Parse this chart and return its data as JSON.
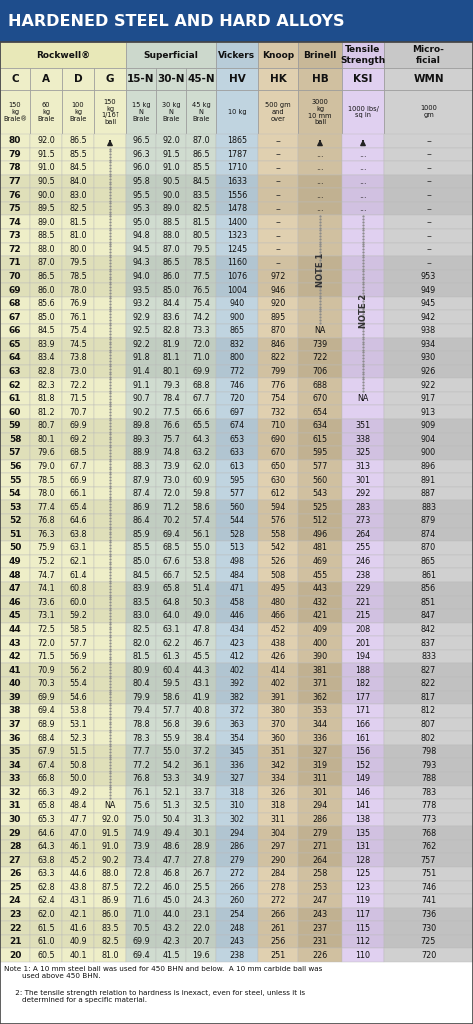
{
  "title": "HARDENED STEEL AND HARD ALLOYS",
  "rows": [
    [
      "80",
      "92.0",
      "86.5",
      "▲",
      "96.5",
      "92.0",
      "87.0",
      "1865",
      "–",
      "▲",
      "▲",
      "–"
    ],
    [
      "79",
      "91.5",
      "85.5",
      "...",
      "96.3",
      "91.5",
      "86.5",
      "1787",
      "–",
      "...",
      "...",
      "–"
    ],
    [
      "78",
      "91.0",
      "84.5",
      "...",
      "96.0",
      "91.0",
      "85.5",
      "1710",
      "–",
      "...",
      "...",
      "–"
    ],
    [
      "77",
      "90.5",
      "84.0",
      "...",
      "95.8",
      "90.5",
      "84.5",
      "1633",
      "–",
      "...",
      "...",
      "–"
    ],
    [
      "76",
      "90.0",
      "83.0",
      "...",
      "95.5",
      "90.0",
      "83.5",
      "1556",
      "–",
      "...",
      "...",
      "–"
    ],
    [
      "75",
      "89.5",
      "82.5",
      "...",
      "95.3",
      "89.0",
      "82.5",
      "1478",
      "–",
      "...",
      "...",
      "–"
    ],
    [
      "74",
      "89.0",
      "81.5",
      "...",
      "95.0",
      "88.5",
      "81.5",
      "1400",
      "–",
      "NOTE1",
      "NOTE2",
      "–"
    ],
    [
      "73",
      "88.5",
      "81.0",
      "...",
      "94.8",
      "88.0",
      "80.5",
      "1323",
      "–",
      "NOTE1",
      "NOTE2",
      "–"
    ],
    [
      "72",
      "88.0",
      "80.0",
      "...",
      "94.5",
      "87.0",
      "79.5",
      "1245",
      "–",
      "NOTE1",
      "NOTE2",
      "–"
    ],
    [
      "71",
      "87.0",
      "79.5",
      "...",
      "94.3",
      "86.5",
      "78.5",
      "1160",
      "–",
      "NOTE1",
      "NOTE2",
      "–"
    ],
    [
      "70",
      "86.5",
      "78.5",
      "...",
      "94.0",
      "86.0",
      "77.5",
      "1076",
      "972",
      "NOTE1",
      "NOTE2",
      "953"
    ],
    [
      "69",
      "86.0",
      "78.0",
      "...",
      "93.5",
      "85.0",
      "76.5",
      "1004",
      "946",
      "NOTE1",
      "NOTE2",
      "949"
    ],
    [
      "68",
      "85.6",
      "76.9",
      "...",
      "93.2",
      "84.4",
      "75.4",
      "940",
      "920",
      "NOTE1",
      "NOTE2",
      "945"
    ],
    [
      "67",
      "85.0",
      "76.1",
      "...",
      "92.9",
      "83.6",
      "74.2",
      "900",
      "895",
      "NOTE1",
      "NOTE2",
      "942"
    ],
    [
      "66",
      "84.5",
      "75.4",
      "...",
      "92.5",
      "82.8",
      "73.3",
      "865",
      "870",
      "NA",
      "NOTE2",
      "938"
    ],
    [
      "65",
      "83.9",
      "74.5",
      "...",
      "92.2",
      "81.9",
      "72.0",
      "832",
      "846",
      "739",
      "NOTE2",
      "934"
    ],
    [
      "64",
      "83.4",
      "73.8",
      "...",
      "91.8",
      "81.1",
      "71.0",
      "800",
      "822",
      "722",
      "NOTE2",
      "930"
    ],
    [
      "63",
      "82.8",
      "73.0",
      "...",
      "91.4",
      "80.1",
      "69.9",
      "772",
      "799",
      "706",
      "NOTE2",
      "926"
    ],
    [
      "62",
      "82.3",
      "72.2",
      "...",
      "91.1",
      "79.3",
      "68.8",
      "746",
      "776",
      "688",
      "NOTE2",
      "922"
    ],
    [
      "61",
      "81.8",
      "71.5",
      "...",
      "90.7",
      "78.4",
      "67.7",
      "720",
      "754",
      "670",
      "NA",
      "917"
    ],
    [
      "60",
      "81.2",
      "70.7",
      "...",
      "90.2",
      "77.5",
      "66.6",
      "697",
      "732",
      "654",
      "",
      "913"
    ],
    [
      "59",
      "80.7",
      "69.9",
      "...",
      "89.8",
      "76.6",
      "65.5",
      "674",
      "710",
      "634",
      "351",
      "909"
    ],
    [
      "58",
      "80.1",
      "69.2",
      "...",
      "89.3",
      "75.7",
      "64.3",
      "653",
      "690",
      "615",
      "338",
      "904"
    ],
    [
      "57",
      "79.6",
      "68.5",
      "...",
      "88.9",
      "74.8",
      "63.2",
      "633",
      "670",
      "595",
      "325",
      "900"
    ],
    [
      "56",
      "79.0",
      "67.7",
      "...",
      "88.3",
      "73.9",
      "62.0",
      "613",
      "650",
      "577",
      "313",
      "896"
    ],
    [
      "55",
      "78.5",
      "66.9",
      "...",
      "87.9",
      "73.0",
      "60.9",
      "595",
      "630",
      "560",
      "301",
      "891"
    ],
    [
      "54",
      "78.0",
      "66.1",
      "...",
      "87.4",
      "72.0",
      "59.8",
      "577",
      "612",
      "543",
      "292",
      "887"
    ],
    [
      "53",
      "77.4",
      "65.4",
      "...",
      "86.9",
      "71.2",
      "58.6",
      "560",
      "594",
      "525",
      "283",
      "883"
    ],
    [
      "52",
      "76.8",
      "64.6",
      "...",
      "86.4",
      "70.2",
      "57.4",
      "544",
      "576",
      "512",
      "273",
      "879"
    ],
    [
      "51",
      "76.3",
      "63.8",
      "...",
      "85.9",
      "69.4",
      "56.1",
      "528",
      "558",
      "496",
      "264",
      "874"
    ],
    [
      "50",
      "75.9",
      "63.1",
      "...",
      "85.5",
      "68.5",
      "55.0",
      "513",
      "542",
      "481",
      "255",
      "870"
    ],
    [
      "49",
      "75.2",
      "62.1",
      "...",
      "85.0",
      "67.6",
      "53.8",
      "498",
      "526",
      "469",
      "246",
      "865"
    ],
    [
      "48",
      "74.7",
      "61.4",
      "...",
      "84.5",
      "66.7",
      "52.5",
      "484",
      "508",
      "455",
      "238",
      "861"
    ],
    [
      "47",
      "74.1",
      "60.8",
      "...",
      "83.9",
      "65.8",
      "51.4",
      "471",
      "495",
      "443",
      "229",
      "856"
    ],
    [
      "46",
      "73.6",
      "60.0",
      "...",
      "83.5",
      "64.8",
      "50.3",
      "458",
      "480",
      "432",
      "221",
      "851"
    ],
    [
      "45",
      "73.1",
      "59.2",
      "...",
      "83.0",
      "64.0",
      "49.0",
      "446",
      "466",
      "421",
      "215",
      "847"
    ],
    [
      "44",
      "72.5",
      "58.5",
      "...",
      "82.5",
      "63.1",
      "47.8",
      "434",
      "452",
      "409",
      "208",
      "842"
    ],
    [
      "43",
      "72.0",
      "57.7",
      "...",
      "82.0",
      "62.2",
      "46.7",
      "423",
      "438",
      "400",
      "201",
      "837"
    ],
    [
      "42",
      "71.5",
      "56.9",
      "...",
      "81.5",
      "61.3",
      "45.5",
      "412",
      "426",
      "390",
      "194",
      "833"
    ],
    [
      "41",
      "70.9",
      "56.2",
      "...",
      "80.9",
      "60.4",
      "44.3",
      "402",
      "414",
      "381",
      "188",
      "827"
    ],
    [
      "40",
      "70.3",
      "55.4",
      "...",
      "80.4",
      "59.5",
      "43.1",
      "392",
      "402",
      "371",
      "182",
      "822"
    ],
    [
      "39",
      "69.9",
      "54.6",
      "...",
      "79.9",
      "58.6",
      "41.9",
      "382",
      "391",
      "362",
      "177",
      "817"
    ],
    [
      "38",
      "69.4",
      "53.8",
      "...",
      "79.4",
      "57.7",
      "40.8",
      "372",
      "380",
      "353",
      "171",
      "812"
    ],
    [
      "37",
      "68.9",
      "53.1",
      "...",
      "78.8",
      "56.8",
      "39.6",
      "363",
      "370",
      "344",
      "166",
      "807"
    ],
    [
      "36",
      "68.4",
      "52.3",
      "...",
      "78.3",
      "55.9",
      "38.4",
      "354",
      "360",
      "336",
      "161",
      "802"
    ],
    [
      "35",
      "67.9",
      "51.5",
      "...",
      "77.7",
      "55.0",
      "37.2",
      "345",
      "351",
      "327",
      "156",
      "798"
    ],
    [
      "34",
      "67.4",
      "50.8",
      "...",
      "77.2",
      "54.2",
      "36.1",
      "336",
      "342",
      "319",
      "152",
      "793"
    ],
    [
      "33",
      "66.8",
      "50.0",
      "...",
      "76.8",
      "53.3",
      "34.9",
      "327",
      "334",
      "311",
      "149",
      "788"
    ],
    [
      "32",
      "66.3",
      "49.2",
      "...",
      "76.1",
      "52.1",
      "33.7",
      "318",
      "326",
      "301",
      "146",
      "783"
    ],
    [
      "31",
      "65.8",
      "48.4",
      "NA",
      "75.6",
      "51.3",
      "32.5",
      "310",
      "318",
      "294",
      "141",
      "778"
    ],
    [
      "30",
      "65.3",
      "47.7",
      "92.0",
      "75.0",
      "50.4",
      "31.3",
      "302",
      "311",
      "286",
      "138",
      "773"
    ],
    [
      "29",
      "64.6",
      "47.0",
      "91.5",
      "74.9",
      "49.4",
      "30.1",
      "294",
      "304",
      "279",
      "135",
      "768"
    ],
    [
      "28",
      "64.3",
      "46.1",
      "91.0",
      "73.9",
      "48.6",
      "28.9",
      "286",
      "297",
      "271",
      "131",
      "762"
    ],
    [
      "27",
      "63.8",
      "45.2",
      "90.2",
      "73.4",
      "47.7",
      "27.8",
      "279",
      "290",
      "264",
      "128",
      "757"
    ],
    [
      "26",
      "63.3",
      "44.6",
      "88.0",
      "72.8",
      "46.8",
      "26.7",
      "272",
      "284",
      "258",
      "125",
      "751"
    ],
    [
      "25",
      "62.8",
      "43.8",
      "87.5",
      "72.2",
      "46.0",
      "25.5",
      "266",
      "278",
      "253",
      "123",
      "746"
    ],
    [
      "24",
      "62.4",
      "43.1",
      "86.9",
      "71.6",
      "45.0",
      "24.3",
      "260",
      "272",
      "247",
      "119",
      "741"
    ],
    [
      "23",
      "62.0",
      "42.1",
      "86.0",
      "71.0",
      "44.0",
      "23.1",
      "254",
      "266",
      "243",
      "117",
      "736"
    ],
    [
      "22",
      "61.5",
      "41.6",
      "83.5",
      "70.5",
      "43.2",
      "22.0",
      "248",
      "261",
      "237",
      "115",
      "730"
    ],
    [
      "21",
      "61.0",
      "40.9",
      "82.5",
      "69.9",
      "42.3",
      "20.7",
      "243",
      "256",
      "231",
      "112",
      "725"
    ],
    [
      "20",
      "60.5",
      "40.1",
      "81.0",
      "69.4",
      "41.5",
      "19.6",
      "238",
      "251",
      "226",
      "110",
      "720"
    ]
  ],
  "col_headers": [
    "C",
    "A",
    "D",
    "G",
    "15-N",
    "30-N",
    "45-N",
    "HV",
    "HK",
    "HB",
    "KSI",
    "WMN"
  ],
  "col_subheaders": [
    "150\nkg\nBrale®",
    "60\nkg\nBrale",
    "100\nkg\nBrale",
    "150\nkg\n1/16⊺\nball",
    "15 kg\nN\nBrale",
    "30 kg\nN\nBrale",
    "45 kg\nN\nBrale",
    "10 kg",
    "500 gm\nand\nover",
    "3000\nkg\n10 mm\nball",
    "1000 lbs/\nsq in",
    "1000\ngm"
  ],
  "group_labels": [
    "Rockwell®",
    "Superficial",
    "Vickers",
    "Knoop",
    "Brinell",
    "Tensile\nStrength",
    "Micro-\nficial"
  ],
  "group_cols": [
    [
      0,
      1,
      2,
      3
    ],
    [
      4,
      5,
      6
    ],
    [
      7
    ],
    [
      8
    ],
    [
      9
    ],
    [
      10
    ],
    [
      11
    ]
  ],
  "group_bgs": [
    "#e8e8b8",
    "#ccd8cc",
    "#b8ccd8",
    "#d8c8a8",
    "#c8b898",
    "#d8c8e8",
    "#c8c8c8"
  ],
  "col_bgs": [
    "#eeeec8",
    "#eeeec8",
    "#eeeec8",
    "#eeeec8",
    "#d0dcd0",
    "#d0dcd0",
    "#d0dcd0",
    "#c0d4e0",
    "#e0d0b0",
    "#d0c0a0",
    "#e0d0f0",
    "#d0d0d0"
  ],
  "note1_rows": [
    6,
    7,
    8,
    9,
    10,
    11,
    12,
    13
  ],
  "note2_rows": [
    6,
    7,
    8,
    9,
    10,
    11,
    12,
    13,
    14,
    15,
    16,
    17,
    18,
    19
  ],
  "title_bg": "#1e4d8c",
  "note1_text": "Note 1: A 10 mm steel ball was used for 450 BHN and below.  A 10 mm carbide ball was\n        used above 450 BHN.",
  "note2_text": "     2: The tensile strength relation to hardness is inexact, even for steel, unless it is\n        determined for a specific material."
}
